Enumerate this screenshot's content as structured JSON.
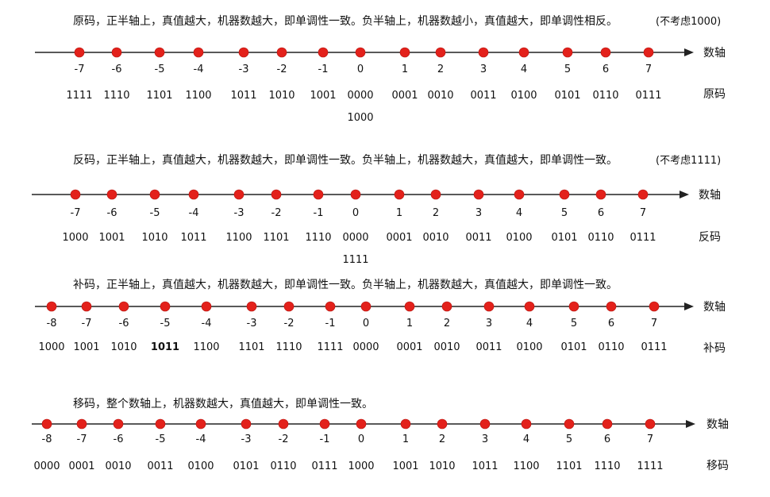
{
  "colors": {
    "dot": "#e3211b",
    "axis": "#222222",
    "text": "#111111"
  },
  "sections": [
    {
      "id": "yuanma",
      "description": "原码，正半轴上，真值越大，机器数越大，即单调性一致。负半轴上，机器数越小，真值越大，即单调性相反。",
      "note": "(不考虑1000)",
      "axis_label": "数轴",
      "code_label": "原码",
      "points": [
        {
          "value": "-7",
          "code": "1111"
        },
        {
          "value": "-6",
          "code": "1110"
        },
        {
          "value": "-5",
          "code": "1101"
        },
        {
          "value": "-4",
          "code": "1100"
        },
        {
          "value": "-3",
          "code": "1011"
        },
        {
          "value": "-2",
          "code": "1010"
        },
        {
          "value": "-1",
          "code": "1001"
        },
        {
          "value": "0",
          "code": "0000",
          "extra_code": "1000"
        },
        {
          "value": "1",
          "code": "0001"
        },
        {
          "value": "2",
          "code": "0010"
        },
        {
          "value": "3",
          "code": "0011"
        },
        {
          "value": "4",
          "code": "0100"
        },
        {
          "value": "5",
          "code": "0101"
        },
        {
          "value": "6",
          "code": "0110"
        },
        {
          "value": "7",
          "code": "0111"
        }
      ]
    },
    {
      "id": "fanma",
      "description": "反码，正半轴上，真值越大，机器数越大，即单调性一致。负半轴上，机器数越大，真值越大，即单调性一致。",
      "note": "(不考虑1111)",
      "axis_label": "数轴",
      "code_label": "反码",
      "points": [
        {
          "value": "-7",
          "code": "1000"
        },
        {
          "value": "-6",
          "code": "1001"
        },
        {
          "value": "-5",
          "code": "1010"
        },
        {
          "value": "-4",
          "code": "1011"
        },
        {
          "value": "-3",
          "code": "1100"
        },
        {
          "value": "-2",
          "code": "1101"
        },
        {
          "value": "-1",
          "code": "1110"
        },
        {
          "value": "0",
          "code": "0000",
          "extra_code": "1111"
        },
        {
          "value": "1",
          "code": "0001"
        },
        {
          "value": "2",
          "code": "0010"
        },
        {
          "value": "3",
          "code": "0011"
        },
        {
          "value": "4",
          "code": "0100"
        },
        {
          "value": "5",
          "code": "0101"
        },
        {
          "value": "6",
          "code": "0110"
        },
        {
          "value": "7",
          "code": "0111"
        }
      ]
    },
    {
      "id": "buma",
      "description": "补码，正半轴上，真值越大，机器数越大，即单调性一致。负半轴上，机器数越大，真值越大，即单调性一致。",
      "note": "",
      "axis_label": "数轴",
      "code_label": "补码",
      "points": [
        {
          "value": "-8",
          "code": "1000"
        },
        {
          "value": "-7",
          "code": "1001"
        },
        {
          "value": "-6",
          "code": "1010"
        },
        {
          "value": "-5",
          "code": "1011",
          "bold": true
        },
        {
          "value": "-4",
          "code": "1100"
        },
        {
          "value": "-3",
          "code": "1101"
        },
        {
          "value": "-2",
          "code": "1110"
        },
        {
          "value": "-1",
          "code": "1111"
        },
        {
          "value": "0",
          "code": "0000"
        },
        {
          "value": "1",
          "code": "0001"
        },
        {
          "value": "2",
          "code": "0010"
        },
        {
          "value": "3",
          "code": "0011"
        },
        {
          "value": "4",
          "code": "0100"
        },
        {
          "value": "5",
          "code": "0101"
        },
        {
          "value": "6",
          "code": "0110"
        },
        {
          "value": "7",
          "code": "0111"
        }
      ]
    },
    {
      "id": "yima",
      "description": "移码，整个数轴上，机器数越大，真值越大，即单调性一致。",
      "note": "",
      "axis_label": "数轴",
      "code_label": "移码",
      "points": [
        {
          "value": "-8",
          "code": "0000"
        },
        {
          "value": "-7",
          "code": "0001"
        },
        {
          "value": "-6",
          "code": "0010"
        },
        {
          "value": "-5",
          "code": "0011"
        },
        {
          "value": "-4",
          "code": "0100"
        },
        {
          "value": "-3",
          "code": "0101"
        },
        {
          "value": "-2",
          "code": "0110"
        },
        {
          "value": "-1",
          "code": "0111"
        },
        {
          "value": "0",
          "code": "1000"
        },
        {
          "value": "1",
          "code": "1001"
        },
        {
          "value": "2",
          "code": "1010"
        },
        {
          "value": "3",
          "code": "1011"
        },
        {
          "value": "4",
          "code": "1100"
        },
        {
          "value": "5",
          "code": "1101"
        },
        {
          "value": "6",
          "code": "1110"
        },
        {
          "value": "7",
          "code": "1111"
        }
      ]
    }
  ]
}
